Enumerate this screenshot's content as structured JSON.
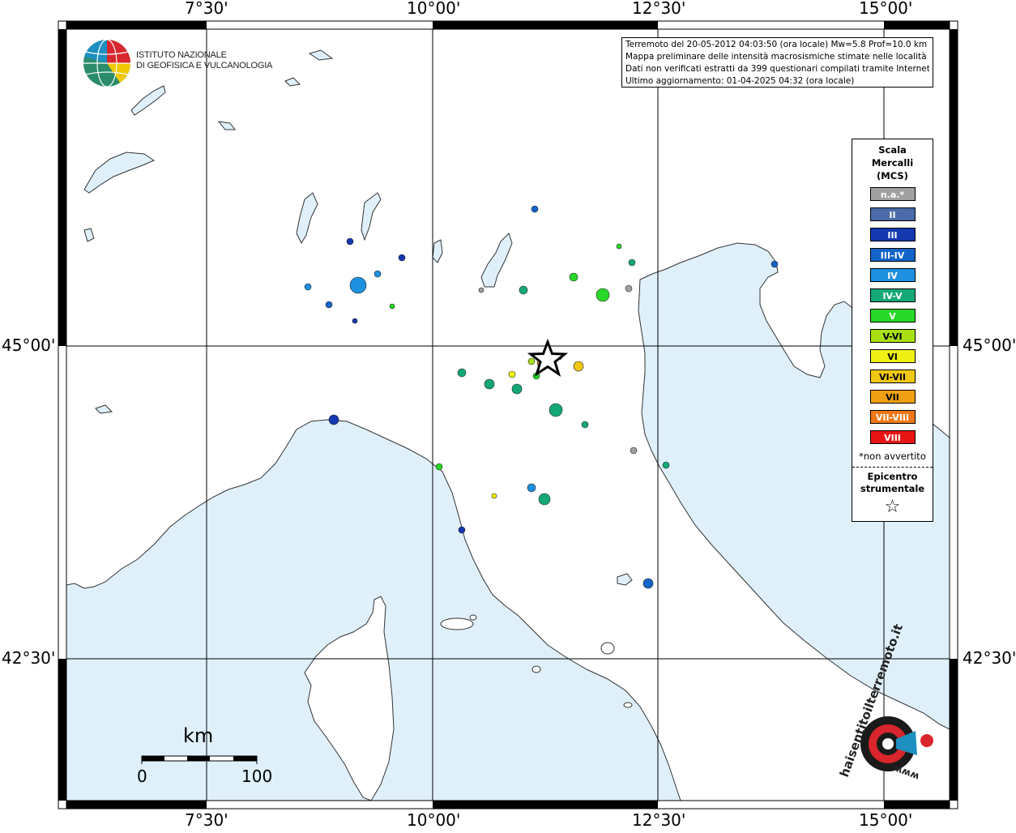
{
  "header": {
    "logo_line1": "ISTITUTO NAZIONALE",
    "logo_line2": "DI GEOFISICA E VULCANOLOGIA"
  },
  "axis": {
    "top": [
      "7°30'",
      "10°00'",
      "12°30'",
      "15°00'"
    ],
    "bottom": [
      "7°30'",
      "10°00'",
      "12°30'",
      "15°00'"
    ],
    "left": [
      "45°00'",
      "42°30'"
    ],
    "right": [
      "45°00'",
      "42°30'"
    ]
  },
  "info": {
    "line1": "Terremoto del 20-05-2012 04:03:50 (ora locale) Mw=5.8 Prof=10.0 km",
    "line2": "Mappa preliminare delle intensità macrosismiche stimate nelle località",
    "line3": "Dati non verificati estratti da 399 questionari compilati tramite Internet.",
    "line4": "Ultimo aggiornamento: 01-04-2025 04:32 (ora locale)"
  },
  "legend": {
    "title1": "Scala",
    "title2": "Mercalli",
    "title3": "(MCS)",
    "items": [
      {
        "label": "n.a.*",
        "color": "#a0a0a0"
      },
      {
        "label": "II",
        "color": "#4a6aa8"
      },
      {
        "label": "III",
        "color": "#1438b0"
      },
      {
        "label": "III-IV",
        "color": "#1464c8"
      },
      {
        "label": "IV",
        "color": "#1e90e0"
      },
      {
        "label": "IV-V",
        "color": "#14a878"
      },
      {
        "label": "V",
        "color": "#28d828"
      },
      {
        "label": "V-VI",
        "color": "#a8e014"
      },
      {
        "label": "VI",
        "color": "#f0f014"
      },
      {
        "label": "VI-VII",
        "color": "#f0c814"
      },
      {
        "label": "VII",
        "color": "#f0a014"
      },
      {
        "label": "VII-VIII",
        "color": "#f07814"
      },
      {
        "label": "VIII",
        "color": "#e81414"
      }
    ],
    "note": "*non avvertito",
    "epi1": "Epicentro",
    "epi2": "strumentale",
    "star": "☆"
  },
  "scalebar": {
    "unit": "km",
    "min": "0",
    "max": "100"
  },
  "watermark": {
    "text": "haisentitoilterremoto.it",
    "www": "www."
  },
  "colors": {
    "sea": "#dff0fb",
    "land": "#ffffff"
  }
}
